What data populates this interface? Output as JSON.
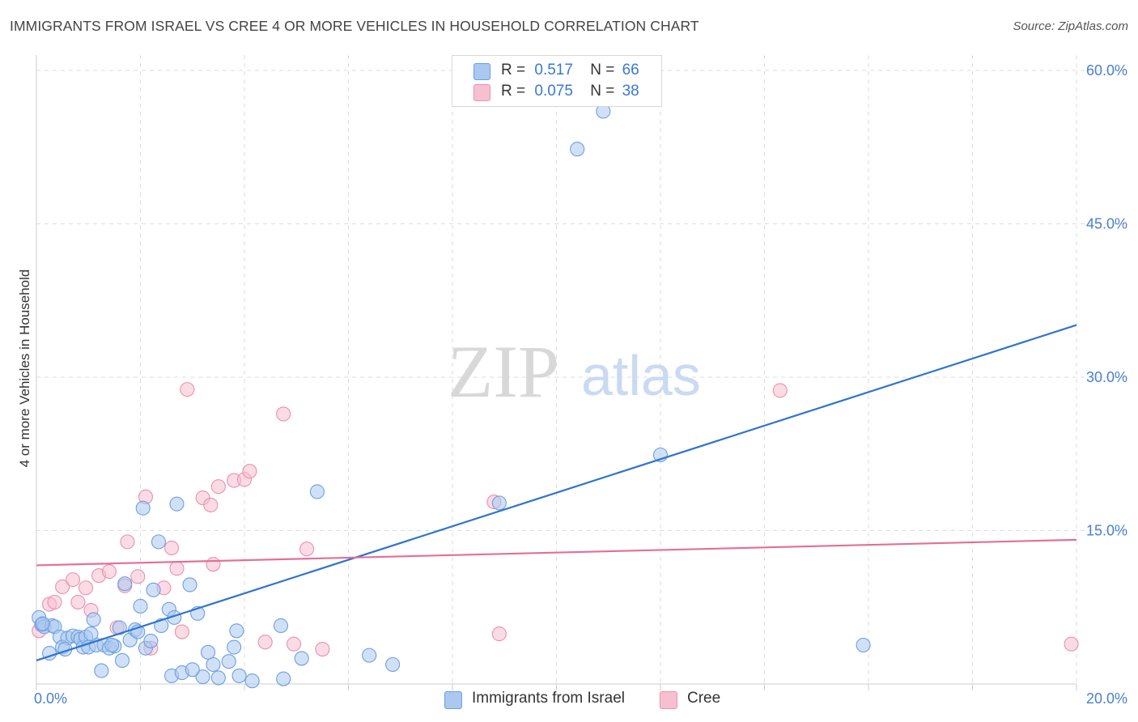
{
  "header": {
    "title": "IMMIGRANTS FROM ISRAEL VS CREE 4 OR MORE VEHICLES IN HOUSEHOLD CORRELATION CHART",
    "source": "Source: ZipAtlas.com"
  },
  "watermark": {
    "zip": "ZIP",
    "atlas": "atlas"
  },
  "legend": {
    "series1": {
      "r_label": "R =",
      "r_value": "0.517",
      "n_label": "N =",
      "n_value": "66"
    },
    "series2": {
      "r_label": "R =",
      "r_value": "0.075",
      "n_label": "N =",
      "n_value": "38"
    }
  },
  "bottom_legend": {
    "series1": "Immigrants from Israel",
    "series2": "Cree"
  },
  "colors": {
    "blue_fill": "#aac8f0",
    "blue_stroke": "#6d9fe0",
    "blue_line": "#2f74d0",
    "pink_fill": "#f7c0d0",
    "pink_stroke": "#ec8fae",
    "pink_line": "#e26f98",
    "grid": "#dddddd",
    "tick_text": "#4a7fd0"
  },
  "chart_data": {
    "type": "scatter",
    "title": "IMMIGRANTS FROM ISRAEL VS CREE 4 OR MORE VEHICLES IN HOUSEHOLD CORRELATION CHART",
    "xlabel": "",
    "ylabel": "4 or more Vehicles in Household",
    "xlim": [
      0,
      20
    ],
    "ylim": [
      0,
      61.5
    ],
    "x_tick_labels": [
      "0.0%",
      "20.0%"
    ],
    "y_ticks": [
      15,
      30,
      45,
      60
    ],
    "y_tick_labels": [
      "15.0%",
      "30.0%",
      "45.0%",
      "60.0%"
    ],
    "grid": true,
    "series": [
      {
        "name": "Immigrants from Israel",
        "color": "blue",
        "points": [
          [
            0.05,
            6.5
          ],
          [
            0.1,
            5.8
          ],
          [
            0.15,
            5.6
          ],
          [
            0.25,
            3.0
          ],
          [
            0.3,
            5.7
          ],
          [
            0.35,
            5.6
          ],
          [
            0.45,
            4.6
          ],
          [
            0.5,
            3.6
          ],
          [
            0.6,
            4.5
          ],
          [
            0.7,
            4.7
          ],
          [
            0.8,
            4.6
          ],
          [
            0.85,
            4.4
          ],
          [
            0.9,
            3.6
          ],
          [
            0.95,
            4.6
          ],
          [
            1.0,
            3.6
          ],
          [
            1.1,
            6.3
          ],
          [
            1.15,
            3.8
          ],
          [
            1.25,
            1.3
          ],
          [
            1.3,
            3.8
          ],
          [
            1.4,
            3.5
          ],
          [
            1.5,
            3.7
          ],
          [
            1.6,
            5.5
          ],
          [
            1.65,
            2.3
          ],
          [
            1.7,
            9.8
          ],
          [
            1.8,
            4.3
          ],
          [
            1.9,
            5.3
          ],
          [
            1.95,
            5.1
          ],
          [
            2.0,
            7.6
          ],
          [
            2.05,
            17.2
          ],
          [
            2.1,
            3.5
          ],
          [
            2.25,
            9.2
          ],
          [
            2.35,
            13.9
          ],
          [
            2.4,
            5.7
          ],
          [
            2.55,
            7.3
          ],
          [
            2.6,
            0.8
          ],
          [
            2.65,
            6.5
          ],
          [
            2.7,
            17.6
          ],
          [
            2.8,
            1.1
          ],
          [
            2.95,
            9.7
          ],
          [
            3.1,
            6.9
          ],
          [
            3.2,
            0.7
          ],
          [
            3.3,
            3.1
          ],
          [
            3.4,
            1.9
          ],
          [
            3.5,
            0.6
          ],
          [
            3.7,
            2.2
          ],
          [
            3.8,
            3.6
          ],
          [
            3.85,
            5.2
          ],
          [
            3.9,
            0.8
          ],
          [
            4.15,
            0.3
          ],
          [
            4.7,
            5.7
          ],
          [
            4.75,
            0.5
          ],
          [
            5.1,
            2.5
          ],
          [
            5.4,
            18.8
          ],
          [
            6.4,
            2.8
          ],
          [
            6.85,
            1.9
          ],
          [
            8.9,
            17.7
          ],
          [
            10.4,
            52.3
          ],
          [
            10.9,
            56.0
          ],
          [
            12.0,
            22.4
          ],
          [
            15.9,
            3.8
          ],
          [
            0.12,
            5.9
          ],
          [
            0.55,
            3.4
          ],
          [
            1.05,
            4.9
          ],
          [
            1.45,
            3.8
          ],
          [
            2.2,
            4.2
          ],
          [
            3.0,
            1.4
          ]
        ]
      },
      {
        "name": "Cree",
        "color": "pink",
        "points": [
          [
            0.05,
            5.2
          ],
          [
            0.1,
            5.8
          ],
          [
            0.25,
            7.8
          ],
          [
            0.35,
            8.0
          ],
          [
            0.5,
            9.5
          ],
          [
            0.7,
            10.2
          ],
          [
            0.8,
            8.0
          ],
          [
            0.95,
            9.4
          ],
          [
            1.05,
            7.2
          ],
          [
            1.2,
            10.6
          ],
          [
            1.4,
            11.0
          ],
          [
            1.55,
            5.5
          ],
          [
            1.7,
            9.6
          ],
          [
            1.75,
            13.9
          ],
          [
            1.95,
            10.5
          ],
          [
            2.1,
            18.3
          ],
          [
            2.2,
            3.5
          ],
          [
            2.45,
            9.4
          ],
          [
            2.6,
            13.3
          ],
          [
            2.7,
            11.3
          ],
          [
            2.8,
            5.1
          ],
          [
            2.9,
            28.8
          ],
          [
            3.2,
            18.2
          ],
          [
            3.35,
            17.5
          ],
          [
            3.4,
            11.7
          ],
          [
            3.5,
            19.3
          ],
          [
            3.8,
            19.9
          ],
          [
            4.0,
            20.0
          ],
          [
            4.1,
            20.8
          ],
          [
            4.4,
            4.1
          ],
          [
            4.75,
            26.4
          ],
          [
            4.95,
            3.9
          ],
          [
            5.2,
            13.2
          ],
          [
            5.5,
            3.4
          ],
          [
            8.8,
            17.8
          ],
          [
            8.9,
            4.9
          ],
          [
            14.3,
            28.7
          ],
          [
            19.9,
            3.9
          ]
        ]
      }
    ],
    "trend_lines": [
      {
        "series": "Immigrants from Israel",
        "x": [
          0,
          20
        ],
        "y": [
          2.3,
          35.1
        ]
      },
      {
        "series": "Cree",
        "x": [
          0,
          20
        ],
        "y": [
          11.6,
          14.1
        ]
      }
    ]
  }
}
